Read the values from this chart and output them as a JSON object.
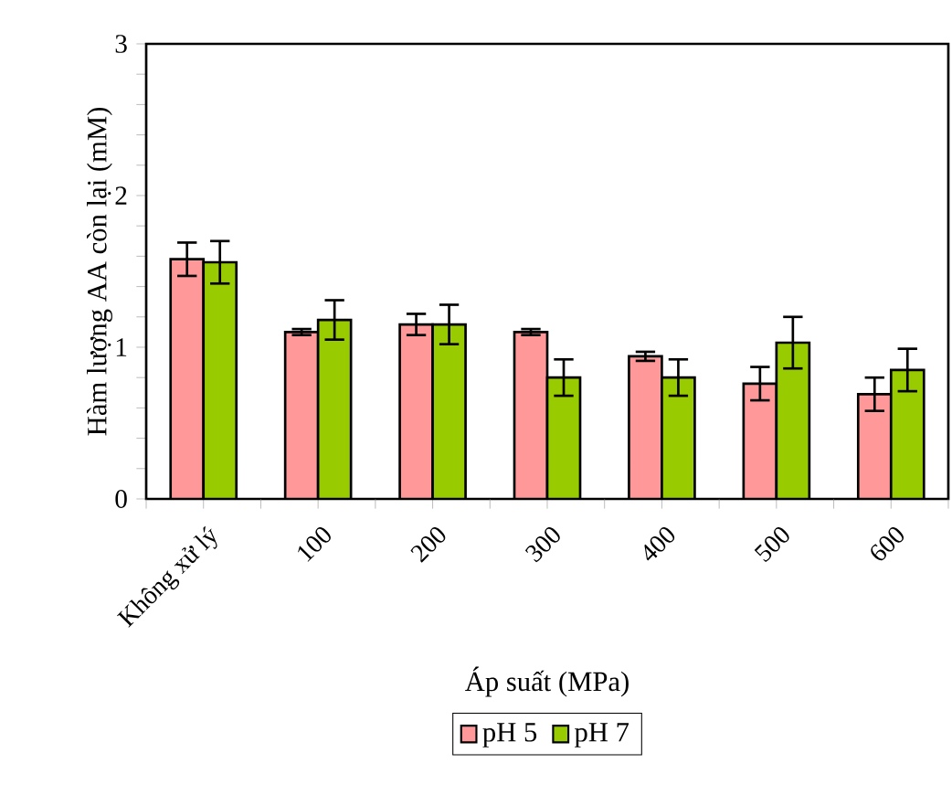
{
  "chart_data": {
    "type": "bar",
    "categories": [
      "Không xử lý",
      "100",
      "200",
      "300",
      "400",
      "500",
      "600"
    ],
    "series": [
      {
        "name": "pH 5",
        "color": "#ff9999",
        "values": [
          1.58,
          1.1,
          1.15,
          1.1,
          0.94,
          0.76,
          0.69
        ],
        "errors": [
          0.11,
          0.02,
          0.07,
          0.02,
          0.03,
          0.11,
          0.11
        ]
      },
      {
        "name": "pH 7",
        "color": "#99cc00",
        "values": [
          1.56,
          1.18,
          1.15,
          0.8,
          0.8,
          1.03,
          0.85
        ],
        "errors": [
          0.14,
          0.13,
          0.13,
          0.12,
          0.12,
          0.17,
          0.14
        ]
      }
    ],
    "xlabel": "Áp suất (MPa)",
    "ylabel": "Hàm lượng AA còn lại (mM)",
    "ylim": [
      0,
      3
    ],
    "yticks": [
      0,
      {
        "value": 0.2,
        "label": null
      },
      {
        "value": 0.4,
        "label": null
      },
      {
        "value": 0.6,
        "label": null
      },
      {
        "value": 0.8,
        "label": null
      },
      1,
      {
        "value": 1.2,
        "label": null
      },
      {
        "value": 1.4,
        "label": null
      },
      {
        "value": 1.6,
        "label": null
      },
      {
        "value": 1.8,
        "label": null
      },
      2,
      {
        "value": 2.2,
        "label": null
      },
      {
        "value": 2.4,
        "label": null
      },
      {
        "value": 2.6,
        "label": null
      },
      {
        "value": 2.8,
        "label": null
      },
      3
    ],
    "grid": false,
    "legend": "bottom"
  }
}
